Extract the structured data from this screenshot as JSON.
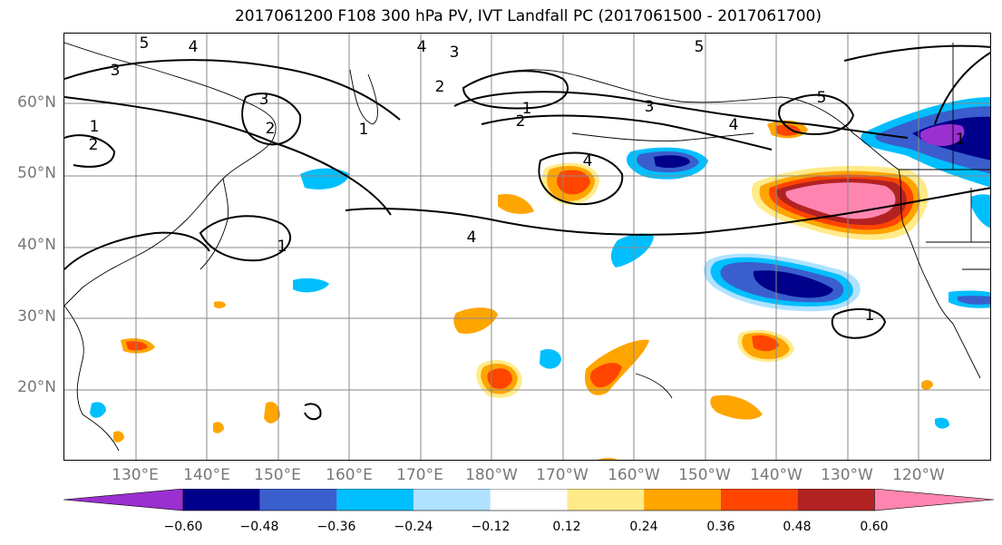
{
  "title": "2017061200 F108 300 hPa PV, IVT Landfall PC (2017061500 - 2017061700)",
  "map": {
    "projection": "PlateCarree (dateline-centered)",
    "lat_labels": [
      "60°N",
      "50°N",
      "40°N",
      "30°N",
      "20°N"
    ],
    "lon_labels": [
      "130°E",
      "140°E",
      "150°E",
      "160°E",
      "170°E",
      "180°W",
      "170°W",
      "160°W",
      "150°W",
      "140°W",
      "130°W",
      "120°W"
    ],
    "gridlines": true,
    "pv_contour_labels": [
      "5",
      "4",
      "3",
      "4",
      "3",
      "2",
      "1",
      "5",
      "1",
      "2",
      "3",
      "4",
      "5",
      "4",
      "3",
      "2",
      "1",
      "2",
      "4",
      "1",
      "1",
      "1"
    ]
  },
  "colorbar": {
    "tick_labels": [
      "−0.60",
      "−0.48",
      "−0.36",
      "−0.24",
      "−0.12",
      "0.12",
      "0.24",
      "0.36",
      "0.48",
      "0.60"
    ],
    "colors": [
      "#9b30d0",
      "#00008b",
      "#3a5fcd",
      "#00bfff",
      "#b0e2ff",
      "#ffffff",
      "#ffeb8a",
      "#ffa500",
      "#ff4500",
      "#b22222",
      "#ff85b0"
    ],
    "extend": "both"
  }
}
